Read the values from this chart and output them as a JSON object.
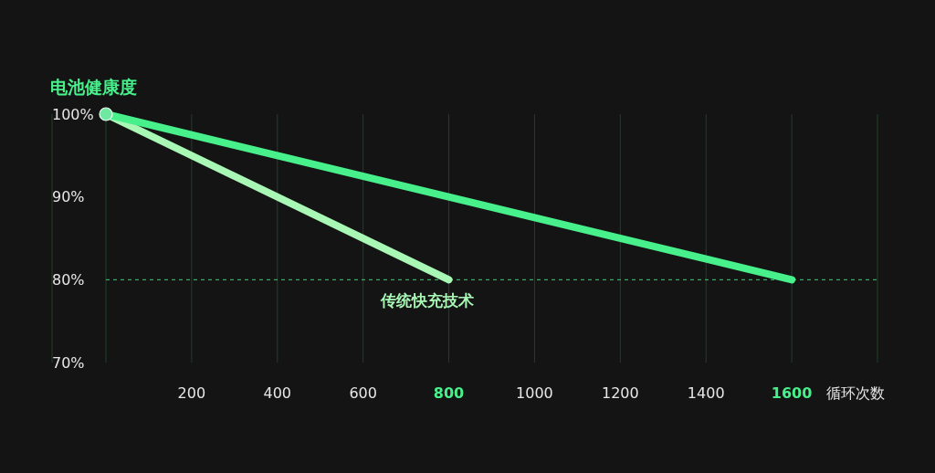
{
  "chart_data": {
    "type": "line",
    "ylabel": "电池健康度",
    "xlabel": "循环次数",
    "xlim": [
      0,
      1800
    ],
    "xticks": [
      {
        "value": 0,
        "label": null
      },
      200,
      400,
      600,
      800,
      1000,
      1200,
      1400,
      1600,
      {
        "value": 1800,
        "label": null
      }
    ],
    "ylim": [
      70,
      100
    ],
    "yticks": [
      {
        "value": 70,
        "label": "70%"
      },
      {
        "value": 80,
        "label": "80%"
      },
      {
        "value": 90,
        "label": "90%"
      },
      {
        "value": 100,
        "label": "100%"
      }
    ],
    "grid": "x",
    "line_style": "solid",
    "series": [
      {
        "name": "传统快充技术",
        "color": "#a9f7b5",
        "x": [
          0,
          800
        ],
        "values": [
          100,
          80
        ]
      },
      {
        "color": "#48f08c",
        "x": [
          0,
          1600
        ],
        "values": [
          100,
          80
        ]
      },
      {
        "type": "scatter",
        "color": "#6fe9a1",
        "x": [
          0
        ],
        "values": [
          100
        ]
      }
    ],
    "ref_lines": [
      {
        "axis": "y",
        "value": 80,
        "color": "#3fcf7a",
        "line_style": "dashed"
      }
    ]
  }
}
